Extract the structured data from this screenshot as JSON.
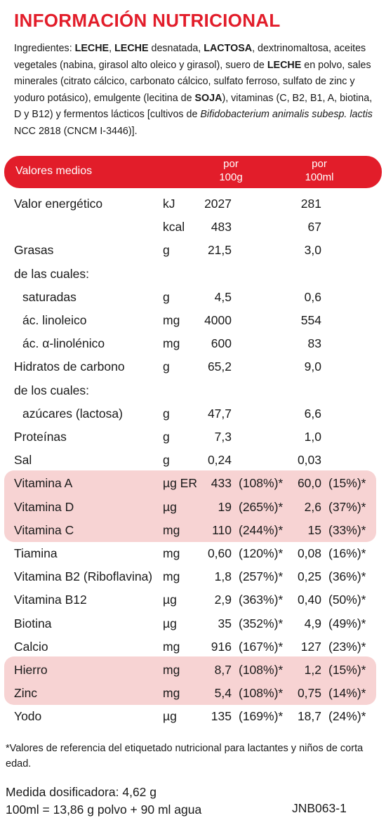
{
  "title": "INFORMACIÓN NUTRICIONAL",
  "ingredients": {
    "p1": "Ingredientes: ",
    "b1": "LECHE",
    "p2": ", ",
    "b2": "LECHE",
    "p3": " desnatada, ",
    "b3": "LACTOSA",
    "p4": ", dextrinomaltosa, aceites vegetales (nabina, girasol alto oleico y girasol), suero de ",
    "b4": "LECHE",
    "p5": " en polvo, sales minerales (citrato cálcico, carbonato cálcico, sulfato ferroso, sulfato de zinc y yoduro potásico), emulgente (lecitina de ",
    "b5": "SOJA",
    "p6": "), vitaminas (C, B2, B1, A, biotina, D y B12) y fermentos lácticos [cultivos de ",
    "i1": "Bifidobacterium animalis subesp. lactis",
    "p7": " NCC 2818 (CNCM I-3446)]."
  },
  "table": {
    "header": {
      "label": "Valores medios",
      "col1_line1": "por",
      "col1_line2": "100g",
      "col2_line1": "por",
      "col2_line2": "100ml"
    },
    "highlight_color": "#f7d3d3",
    "accent_color": "#e21d2a",
    "rows": [
      {
        "name": "Valor energético",
        "unit": "kJ",
        "v100g": "2027",
        "p100g": "",
        "v100ml": "281",
        "p100ml": ""
      },
      {
        "name": "",
        "unit": "kcal",
        "v100g": "483",
        "p100g": "",
        "v100ml": "67",
        "p100ml": ""
      },
      {
        "name": "Grasas",
        "unit": "g",
        "v100g": "21,5",
        "p100g": "",
        "v100ml": "3,0",
        "p100ml": ""
      },
      {
        "name": "de las cuales:",
        "unit": "",
        "v100g": "",
        "p100g": "",
        "v100ml": "",
        "p100ml": ""
      },
      {
        "name": "saturadas",
        "unit": "g",
        "v100g": "4,5",
        "p100g": "",
        "v100ml": "0,6",
        "p100ml": ""
      },
      {
        "name": "ác. linoleico",
        "unit": "mg",
        "v100g": "4000",
        "p100g": "",
        "v100ml": "554",
        "p100ml": ""
      },
      {
        "name": "ác. α-linolénico",
        "unit": "mg",
        "v100g": "600",
        "p100g": "",
        "v100ml": "83",
        "p100ml": ""
      },
      {
        "name": "Hidratos de carbono",
        "unit": "g",
        "v100g": "65,2",
        "p100g": "",
        "v100ml": "9,0",
        "p100ml": ""
      },
      {
        "name": "de los cuales:",
        "unit": "",
        "v100g": "",
        "p100g": "",
        "v100ml": "",
        "p100ml": ""
      },
      {
        "name": "azúcares (lactosa)",
        "unit": "g",
        "v100g": "47,7",
        "p100g": "",
        "v100ml": "6,6",
        "p100ml": ""
      },
      {
        "name": "Proteínas",
        "unit": "g",
        "v100g": "7,3",
        "p100g": "",
        "v100ml": "1,0",
        "p100ml": ""
      },
      {
        "name": "Sal",
        "unit": "g",
        "v100g": "0,24",
        "p100g": "",
        "v100ml": "0,03",
        "p100ml": ""
      },
      {
        "name": "Vitamina A",
        "unit": "µg ER",
        "v100g": "433",
        "p100g": "(108%)*",
        "v100ml": "60,0",
        "p100ml": "(15%)*"
      },
      {
        "name": "Vitamina D",
        "unit": "µg",
        "v100g": "19",
        "p100g": "(265%)*",
        "v100ml": "2,6",
        "p100ml": "(37%)*"
      },
      {
        "name": "Vitamina C",
        "unit": "mg",
        "v100g": "110",
        "p100g": "(244%)*",
        "v100ml": "15",
        "p100ml": "(33%)*"
      },
      {
        "name": "Tiamina",
        "unit": "mg",
        "v100g": "0,60",
        "p100g": "(120%)*",
        "v100ml": "0,08",
        "p100ml": "(16%)*"
      },
      {
        "name": "Vitamina B2 (Riboflavina)",
        "unit": "mg",
        "v100g": "1,8",
        "p100g": "(257%)*",
        "v100ml": "0,25",
        "p100ml": "(36%)*"
      },
      {
        "name": "Vitamina B12",
        "unit": "µg",
        "v100g": "2,9",
        "p100g": "(363%)*",
        "v100ml": "0,40",
        "p100ml": "(50%)*"
      },
      {
        "name": "Biotina",
        "unit": "µg",
        "v100g": "35",
        "p100g": "(352%)*",
        "v100ml": "4,9",
        "p100ml": "(49%)*"
      },
      {
        "name": "Calcio",
        "unit": "mg",
        "v100g": "916",
        "p100g": "(167%)*",
        "v100ml": "127",
        "p100ml": "(23%)*"
      },
      {
        "name": "Hierro",
        "unit": "mg",
        "v100g": "8,7",
        "p100g": "(108%)*",
        "v100ml": "1,2",
        "p100ml": "(15%)*"
      },
      {
        "name": "Zinc",
        "unit": "mg",
        "v100g": "5,4",
        "p100g": "(108%)*",
        "v100ml": "0,75",
        "p100ml": "(14%)*"
      },
      {
        "name": "Yodo",
        "unit": "µg",
        "v100g": "135",
        "p100g": "(169%)*",
        "v100ml": "18,7",
        "p100ml": "(24%)*"
      }
    ]
  },
  "footnote": "*Valores de referencia del etiquetado nutricional para lactantes y niños de corta edad.",
  "measure_line1": "Medida dosificadora: 4,62 g",
  "measure_line2": "100ml = 13,86 g polvo + 90 ml agua",
  "code": "JNB063-1"
}
